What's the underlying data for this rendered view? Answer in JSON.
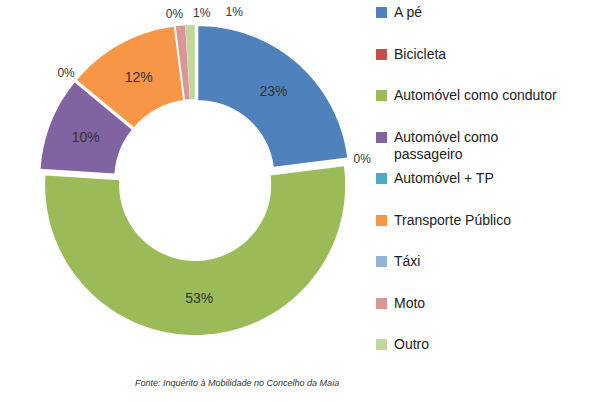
{
  "chart_data": {
    "type": "donut",
    "categories": [
      "A pé",
      "Bicicleta",
      "Automóvel como condutor",
      "Automóvel como passageiro",
      "Automóvel + TP",
      "Transporte Público",
      "Táxi",
      "Moto",
      "Outro"
    ],
    "values": [
      23,
      0,
      53,
      10,
      0,
      12,
      0,
      1,
      1
    ],
    "value_labels": [
      "23%",
      "0%",
      "53%",
      "10%",
      "0%",
      "12%",
      "0%",
      "1%",
      "1%"
    ],
    "colors": [
      "#4F81BD",
      "#C0504D",
      "#9BBB59",
      "#8064A2",
      "#4BACC6",
      "#F79646",
      "#95B3D7",
      "#D99694",
      "#C3D69B"
    ],
    "data_labels": true,
    "legend": "right",
    "source": "Fonte: Inquérito à Mobilidade no Concelho da Maia"
  }
}
